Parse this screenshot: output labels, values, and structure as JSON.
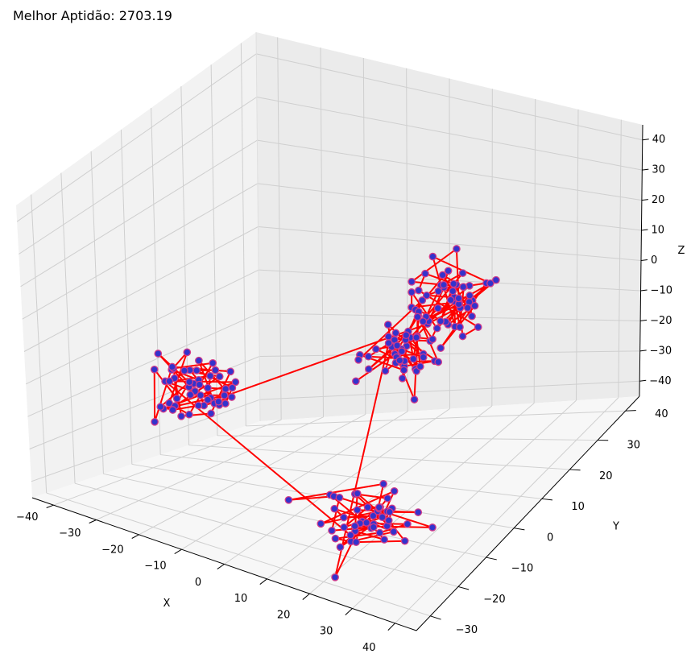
{
  "chart_data": {
    "type": "scatter",
    "projection": "3d",
    "title": "Melhor Aptidão: 2703.19",
    "xlabel": "X",
    "ylabel": "Y",
    "zlabel": "Z",
    "xlim": [
      -45,
      45
    ],
    "ylim": [
      -35,
      45
    ],
    "zlim": [
      -45,
      45
    ],
    "x_ticks": [
      -40,
      -30,
      -20,
      -10,
      0,
      10,
      20,
      30,
      40
    ],
    "y_ticks": [
      -30,
      -20,
      -10,
      0,
      10,
      20,
      30,
      40
    ],
    "z_ticks": [
      -40,
      -30,
      -20,
      -10,
      0,
      10,
      20,
      30,
      40
    ],
    "x_tick_labels": [
      "−40",
      "−30",
      "−20",
      "−10",
      "0",
      "10",
      "20",
      "30",
      "40"
    ],
    "y_tick_labels": [
      "−30",
      "−20",
      "−10",
      "0",
      "10",
      "20",
      "30",
      "40"
    ],
    "z_tick_labels": [
      "−40",
      "−30",
      "−20",
      "−10",
      "0",
      "10",
      "20",
      "30",
      "40"
    ],
    "grid": true,
    "point_color": "#3333cc",
    "point_edge_color": "#d23a8a",
    "line_color": "#ff0000",
    "clusters": [
      {
        "center": [
          -30,
          0,
          -20
        ],
        "spread": 8
      },
      {
        "center": [
          30,
          0,
          30
        ],
        "spread": 8
      },
      {
        "center": [
          0,
          30,
          -20
        ],
        "spread": 8
      },
      {
        "center": [
          25,
          -20,
          -30
        ],
        "spread": 8
      }
    ],
    "points_per_cluster": 50
  }
}
